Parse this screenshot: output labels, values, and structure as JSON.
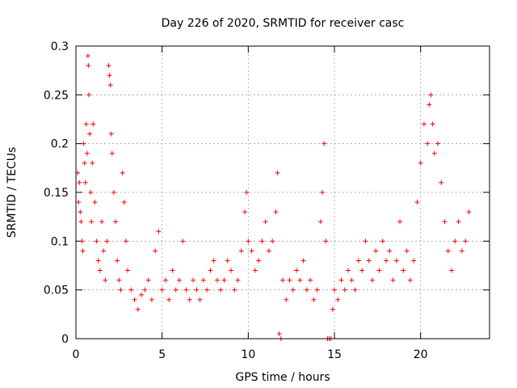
{
  "chart_data": {
    "type": "scatter",
    "title": "Day 226 of 2020, SRMTID for receiver casc",
    "xlabel": "GPS time / hours",
    "ylabel": "SRMTID / TECUs",
    "xlim": [
      0,
      24
    ],
    "ylim": [
      0,
      0.3
    ],
    "x_ticks": [
      {
        "value": 0,
        "label": "0"
      },
      {
        "value": 5,
        "label": "5"
      },
      {
        "value": 10,
        "label": "10"
      },
      {
        "value": 15,
        "label": "15"
      },
      {
        "value": 20,
        "label": "20"
      }
    ],
    "y_ticks": [
      {
        "value": 0,
        "label": "0"
      },
      {
        "value": 0.05,
        "label": "0.05"
      },
      {
        "value": 0.1,
        "label": "0.1"
      },
      {
        "value": 0.15,
        "label": "0.15"
      },
      {
        "value": 0.2,
        "label": "0.2"
      },
      {
        "value": 0.25,
        "label": "0.25"
      },
      {
        "value": 0.3,
        "label": "0.3"
      }
    ],
    "grid": true,
    "marker": "+",
    "color": "#ff0000",
    "series": [
      {
        "name": "SRMTID",
        "points": [
          [
            0.1,
            0.17
          ],
          [
            0.15,
            0.14
          ],
          [
            0.2,
            0.16
          ],
          [
            0.25,
            0.13
          ],
          [
            0.3,
            0.12
          ],
          [
            0.35,
            0.1
          ],
          [
            0.4,
            0.09
          ],
          [
            0.45,
            0.2
          ],
          [
            0.5,
            0.18
          ],
          [
            0.55,
            0.16
          ],
          [
            0.6,
            0.22
          ],
          [
            0.65,
            0.19
          ],
          [
            0.7,
            0.29
          ],
          [
            0.72,
            0.28
          ],
          [
            0.75,
            0.25
          ],
          [
            0.8,
            0.21
          ],
          [
            0.85,
            0.15
          ],
          [
            0.9,
            0.12
          ],
          [
            0.95,
            0.18
          ],
          [
            1.0,
            0.22
          ],
          [
            1.1,
            0.14
          ],
          [
            1.2,
            0.1
          ],
          [
            1.3,
            0.08
          ],
          [
            1.4,
            0.07
          ],
          [
            1.5,
            0.12
          ],
          [
            1.6,
            0.09
          ],
          [
            1.7,
            0.06
          ],
          [
            1.8,
            0.1
          ],
          [
            1.9,
            0.28
          ],
          [
            1.95,
            0.27
          ],
          [
            2.0,
            0.26
          ],
          [
            2.05,
            0.21
          ],
          [
            2.1,
            0.19
          ],
          [
            2.2,
            0.15
          ],
          [
            2.3,
            0.12
          ],
          [
            2.4,
            0.08
          ],
          [
            2.5,
            0.06
          ],
          [
            2.6,
            0.05
          ],
          [
            2.7,
            0.17
          ],
          [
            2.8,
            0.14
          ],
          [
            2.9,
            0.1
          ],
          [
            3.0,
            0.07
          ],
          [
            3.2,
            0.05
          ],
          [
            3.4,
            0.04
          ],
          [
            3.6,
            0.03
          ],
          [
            3.8,
            0.045
          ],
          [
            4.0,
            0.05
          ],
          [
            4.2,
            0.06
          ],
          [
            4.4,
            0.04
          ],
          [
            4.6,
            0.09
          ],
          [
            4.8,
            0.11
          ],
          [
            5.0,
            0.05
          ],
          [
            5.2,
            0.06
          ],
          [
            5.4,
            0.04
          ],
          [
            5.6,
            0.07
          ],
          [
            5.8,
            0.05
          ],
          [
            6.0,
            0.06
          ],
          [
            6.2,
            0.1
          ],
          [
            6.4,
            0.05
          ],
          [
            6.6,
            0.04
          ],
          [
            6.8,
            0.06
          ],
          [
            7.0,
            0.05
          ],
          [
            7.2,
            0.04
          ],
          [
            7.4,
            0.06
          ],
          [
            7.6,
            0.05
          ],
          [
            7.8,
            0.07
          ],
          [
            8.0,
            0.08
          ],
          [
            8.2,
            0.06
          ],
          [
            8.4,
            0.05
          ],
          [
            8.6,
            0.06
          ],
          [
            8.8,
            0.08
          ],
          [
            9.0,
            0.07
          ],
          [
            9.2,
            0.05
          ],
          [
            9.4,
            0.06
          ],
          [
            9.6,
            0.09
          ],
          [
            9.8,
            0.13
          ],
          [
            9.9,
            0.15
          ],
          [
            10.0,
            0.1
          ],
          [
            10.2,
            0.09
          ],
          [
            10.4,
            0.07
          ],
          [
            10.6,
            0.08
          ],
          [
            10.8,
            0.1
          ],
          [
            11.0,
            0.12
          ],
          [
            11.2,
            0.09
          ],
          [
            11.4,
            0.1
          ],
          [
            11.6,
            0.13
          ],
          [
            11.7,
            0.17
          ],
          [
            11.8,
            0.005
          ],
          [
            11.9,
            0.0
          ],
          [
            12.0,
            0.06
          ],
          [
            12.2,
            0.04
          ],
          [
            12.4,
            0.06
          ],
          [
            12.6,
            0.05
          ],
          [
            12.8,
            0.07
          ],
          [
            13.0,
            0.06
          ],
          [
            13.2,
            0.08
          ],
          [
            13.4,
            0.05
          ],
          [
            13.6,
            0.06
          ],
          [
            13.8,
            0.04
          ],
          [
            14.0,
            0.05
          ],
          [
            14.2,
            0.12
          ],
          [
            14.3,
            0.15
          ],
          [
            14.4,
            0.2
          ],
          [
            14.5,
            0.1
          ],
          [
            14.6,
            0.0
          ],
          [
            14.7,
            0.0
          ],
          [
            14.8,
            0.0
          ],
          [
            14.9,
            0.03
          ],
          [
            15.0,
            0.05
          ],
          [
            15.2,
            0.04
          ],
          [
            15.4,
            0.06
          ],
          [
            15.6,
            0.05
          ],
          [
            15.8,
            0.07
          ],
          [
            16.0,
            0.06
          ],
          [
            16.2,
            0.05
          ],
          [
            16.4,
            0.08
          ],
          [
            16.6,
            0.07
          ],
          [
            16.8,
            0.1
          ],
          [
            17.0,
            0.08
          ],
          [
            17.2,
            0.06
          ],
          [
            17.4,
            0.09
          ],
          [
            17.6,
            0.07
          ],
          [
            17.8,
            0.1
          ],
          [
            18.0,
            0.08
          ],
          [
            18.2,
            0.09
          ],
          [
            18.4,
            0.06
          ],
          [
            18.6,
            0.08
          ],
          [
            18.8,
            0.12
          ],
          [
            19.0,
            0.07
          ],
          [
            19.2,
            0.09
          ],
          [
            19.4,
            0.06
          ],
          [
            19.6,
            0.08
          ],
          [
            19.8,
            0.14
          ],
          [
            20.0,
            0.18
          ],
          [
            20.2,
            0.22
          ],
          [
            20.4,
            0.2
          ],
          [
            20.5,
            0.24
          ],
          [
            20.6,
            0.25
          ],
          [
            20.7,
            0.22
          ],
          [
            20.8,
            0.19
          ],
          [
            21.0,
            0.2
          ],
          [
            21.2,
            0.16
          ],
          [
            21.4,
            0.12
          ],
          [
            21.6,
            0.09
          ],
          [
            21.8,
            0.07
          ],
          [
            22.0,
            0.1
          ],
          [
            22.2,
            0.12
          ],
          [
            22.4,
            0.09
          ],
          [
            22.6,
            0.1
          ],
          [
            22.8,
            0.13
          ]
        ]
      }
    ]
  }
}
